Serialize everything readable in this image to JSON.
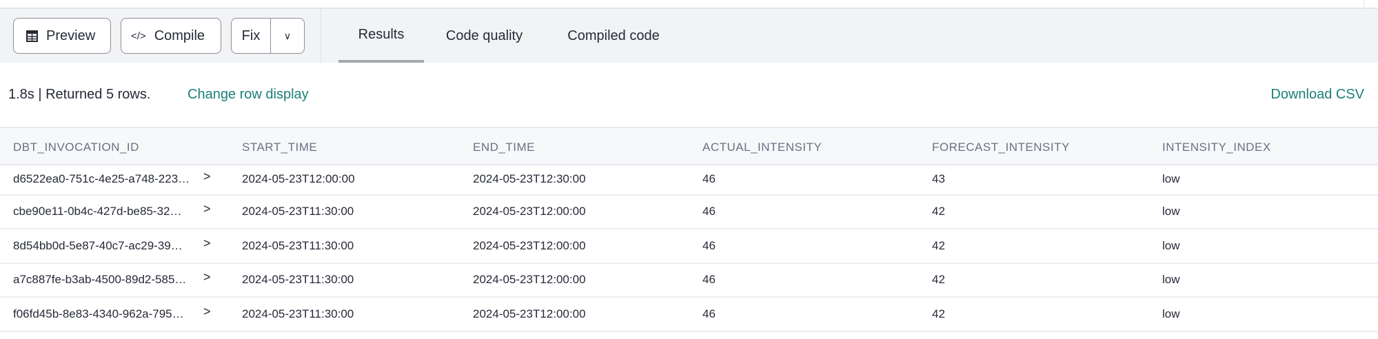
{
  "toolbar": {
    "preview_label": "Preview",
    "compile_label": "Compile",
    "fix_label": "Fix",
    "tabs": [
      {
        "label": "Results",
        "active": true
      },
      {
        "label": "Code quality"
      },
      {
        "label": "Compiled code"
      }
    ]
  },
  "results": {
    "status": "1.8s | Returned 5 rows.",
    "change_row_display": "Change row display",
    "download_csv": "Download CSV",
    "link_color": "#1b7f79",
    "columns": [
      "DBT_INVOCATION_ID",
      "START_TIME",
      "END_TIME",
      "ACTUAL_INTENSITY",
      "FORECAST_INTENSITY",
      "INTENSITY_INDEX"
    ],
    "rows": [
      [
        "d6522ea0-751c-4e25-a748-223…",
        "2024-05-23T12:00:00",
        "2024-05-23T12:30:00",
        "46",
        "43",
        "low"
      ],
      [
        "cbe90e11-0b4c-427d-be85-32…",
        "2024-05-23T11:30:00",
        "2024-05-23T12:00:00",
        "46",
        "42",
        "low"
      ],
      [
        "8d54bb0d-5e87-40c7-ac29-39…",
        "2024-05-23T11:30:00",
        "2024-05-23T12:00:00",
        "46",
        "42",
        "low"
      ],
      [
        "a7c887fe-b3ab-4500-89d2-585…",
        "2024-05-23T11:30:00",
        "2024-05-23T12:00:00",
        "46",
        "42",
        "low"
      ],
      [
        "f06fd45b-8e83-4340-962a-795…",
        "2024-05-23T11:30:00",
        "2024-05-23T12:00:00",
        "46",
        "42",
        "low"
      ]
    ]
  }
}
